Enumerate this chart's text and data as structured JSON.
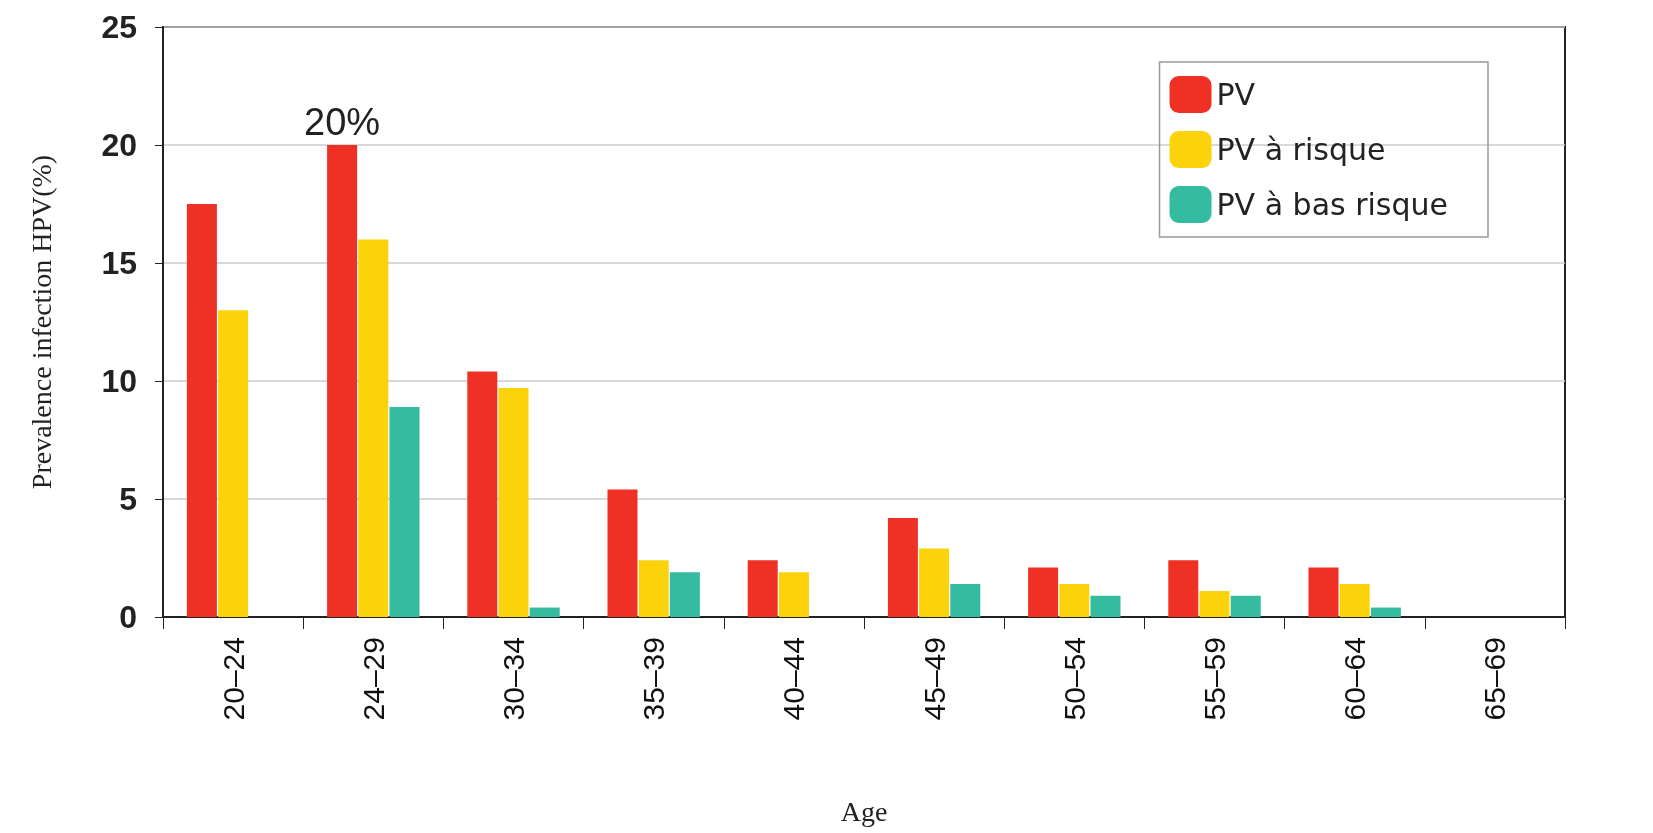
{
  "chart_data": {
    "type": "bar",
    "xlabel": "Age",
    "ylabel": "Prevalence infection HPV(%)",
    "categories": [
      "20–24",
      "24–29",
      "30–34",
      "35–39",
      "40–44",
      "45–49",
      "50–54",
      "55–59",
      "60–64",
      "65–69"
    ],
    "series": [
      {
        "name": "PV",
        "color": "#ee3124",
        "values": [
          17.5,
          20,
          10.4,
          5.4,
          2.4,
          4.2,
          2.1,
          2.4,
          2.1,
          0
        ],
        "value_labels": [
          null,
          "20%",
          null,
          null,
          null,
          null,
          null,
          null,
          null,
          null
        ]
      },
      {
        "name": "PV à risque",
        "color": "#fcd20b",
        "values": [
          13,
          16,
          9.7,
          2.4,
          1.9,
          2.9,
          1.4,
          1.1,
          1.4,
          0
        ]
      },
      {
        "name": "PV à bas risque",
        "color": "#35bb9f",
        "values": [
          0,
          8.9,
          0.4,
          1.9,
          0,
          1.4,
          0.9,
          0.9,
          0.4,
          0
        ]
      }
    ],
    "ylim": [
      0,
      25
    ],
    "yticks": [
      0,
      5,
      10,
      15,
      20,
      25
    ],
    "grid": "y",
    "legend": "top right"
  }
}
